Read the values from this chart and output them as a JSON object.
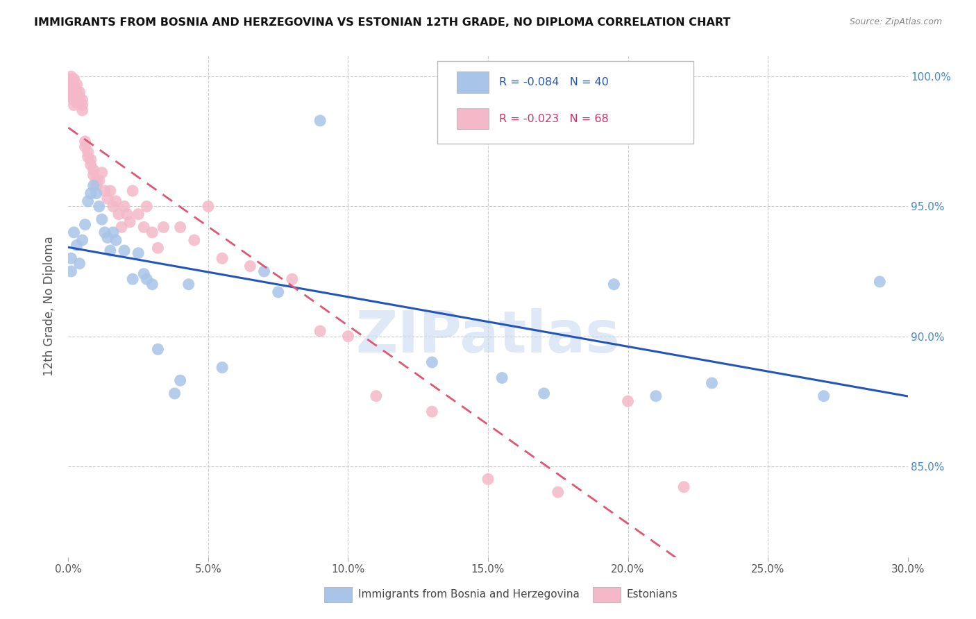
{
  "title": "IMMIGRANTS FROM BOSNIA AND HERZEGOVINA VS ESTONIAN 12TH GRADE, NO DIPLOMA CORRELATION CHART",
  "source": "Source: ZipAtlas.com",
  "ylabel": "12th Grade, No Diploma",
  "ylabel_ticks": [
    "100.0%",
    "95.0%",
    "90.0%",
    "85.0%"
  ],
  "ylabel_tick_values": [
    1.0,
    0.95,
    0.9,
    0.85
  ],
  "xmin": 0.0,
  "xmax": 0.3,
  "ymin": 0.815,
  "ymax": 1.008,
  "blue_R": "-0.084",
  "blue_N": "40",
  "pink_R": "-0.023",
  "pink_N": "68",
  "blue_color": "#a8c4e8",
  "pink_color": "#f4b8c8",
  "blue_line_color": "#2255bb",
  "pink_line_color": "#e05575",
  "pink_line_style": "--",
  "blue_line_style": "-",
  "watermark_text": "ZIPatlas",
  "watermark_color": "#c8daf0",
  "blue_x": [
    0.001,
    0.001,
    0.002,
    0.003,
    0.004,
    0.005,
    0.006,
    0.007,
    0.008,
    0.009,
    0.01,
    0.011,
    0.012,
    0.013,
    0.014,
    0.015,
    0.016,
    0.017,
    0.02,
    0.023,
    0.025,
    0.027,
    0.028,
    0.03,
    0.032,
    0.038,
    0.04,
    0.043,
    0.055,
    0.07,
    0.075,
    0.09,
    0.13,
    0.155,
    0.17,
    0.195,
    0.21,
    0.23,
    0.27,
    0.29
  ],
  "blue_y": [
    0.93,
    0.925,
    0.94,
    0.935,
    0.928,
    0.937,
    0.943,
    0.952,
    0.955,
    0.958,
    0.955,
    0.95,
    0.945,
    0.94,
    0.938,
    0.933,
    0.94,
    0.937,
    0.933,
    0.922,
    0.932,
    0.924,
    0.922,
    0.92,
    0.895,
    0.878,
    0.883,
    0.92,
    0.888,
    0.925,
    0.917,
    0.983,
    0.89,
    0.884,
    0.878,
    0.92,
    0.877,
    0.882,
    0.877,
    0.921
  ],
  "pink_x": [
    0.001,
    0.001,
    0.001,
    0.001,
    0.001,
    0.001,
    0.001,
    0.001,
    0.002,
    0.002,
    0.002,
    0.002,
    0.002,
    0.002,
    0.003,
    0.003,
    0.003,
    0.003,
    0.003,
    0.004,
    0.004,
    0.004,
    0.005,
    0.005,
    0.005,
    0.006,
    0.006,
    0.007,
    0.007,
    0.008,
    0.008,
    0.009,
    0.009,
    0.01,
    0.01,
    0.011,
    0.012,
    0.013,
    0.014,
    0.015,
    0.016,
    0.017,
    0.018,
    0.019,
    0.02,
    0.021,
    0.022,
    0.023,
    0.025,
    0.027,
    0.028,
    0.03,
    0.032,
    0.034,
    0.04,
    0.045,
    0.05,
    0.055,
    0.065,
    0.08,
    0.09,
    0.1,
    0.11,
    0.13,
    0.15,
    0.175,
    0.2,
    0.22
  ],
  "pink_y": [
    1.0,
    0.999,
    0.998,
    0.997,
    0.996,
    0.994,
    0.993,
    0.992,
    0.999,
    0.997,
    0.995,
    0.993,
    0.991,
    0.989,
    0.997,
    0.995,
    0.993,
    0.991,
    0.99,
    0.994,
    0.992,
    0.99,
    0.991,
    0.989,
    0.987,
    0.975,
    0.973,
    0.971,
    0.969,
    0.968,
    0.966,
    0.964,
    0.962,
    0.96,
    0.958,
    0.96,
    0.963,
    0.956,
    0.953,
    0.956,
    0.95,
    0.952,
    0.947,
    0.942,
    0.95,
    0.947,
    0.944,
    0.956,
    0.947,
    0.942,
    0.95,
    0.94,
    0.934,
    0.942,
    0.942,
    0.937,
    0.95,
    0.93,
    0.927,
    0.922,
    0.902,
    0.9,
    0.877,
    0.871,
    0.845,
    0.84,
    0.875,
    0.842
  ]
}
